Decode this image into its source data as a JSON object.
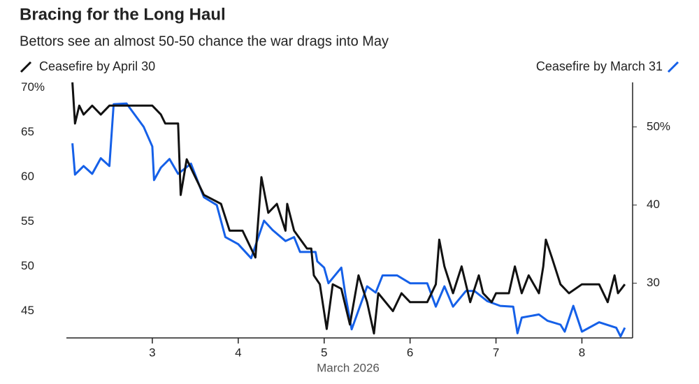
{
  "chart_data": {
    "type": "line",
    "title": "Bracing for the Long Haul",
    "subtitle": "Bettors see an almost 50-50 chance the war drags into May",
    "xlabel": "March 2026",
    "xlim": [
      2,
      8.59
    ],
    "xticks": [
      3,
      4,
      5,
      6,
      7,
      8
    ],
    "ylim": [
      42,
      70.6
    ],
    "yticks": [
      45,
      50,
      55,
      60,
      65,
      {
        "value": 70,
        "label": "70%"
      }
    ],
    "y2lim": [
      23,
      55.7
    ],
    "y2ticks": [
      30,
      40,
      {
        "value": 50,
        "label": "50%"
      }
    ],
    "series": [
      {
        "name": "Ceasefire by April 30",
        "color": "#111111",
        "axis": "y",
        "x": [
          2.07,
          2.1,
          2.15,
          2.2,
          2.3,
          2.4,
          2.5,
          2.6,
          2.8,
          3.0,
          3.1,
          3.15,
          3.3,
          3.33,
          3.4,
          3.5,
          3.6,
          3.8,
          3.9,
          4.05,
          4.2,
          4.27,
          4.35,
          4.45,
          4.55,
          4.57,
          4.65,
          4.8,
          4.85,
          4.88,
          4.95,
          5.03,
          5.1,
          5.2,
          5.3,
          5.4,
          5.5,
          5.58,
          5.63,
          5.8,
          5.9,
          6.0,
          6.2,
          6.3,
          6.34,
          6.4,
          6.5,
          6.6,
          6.7,
          6.8,
          6.85,
          6.95,
          7.0,
          7.15,
          7.22,
          7.3,
          7.38,
          7.5,
          7.55,
          7.58,
          7.65,
          7.75,
          7.85,
          8.0,
          8.2,
          8.3,
          8.38,
          8.42,
          8.5
        ],
        "values": [
          70.6,
          66,
          68,
          67,
          68,
          67,
          68,
          68,
          68,
          68,
          67,
          66,
          66,
          58,
          62,
          60,
          58,
          57,
          54,
          54,
          51,
          60,
          56,
          57,
          54,
          57,
          54,
          52,
          52,
          49,
          48,
          43,
          48,
          47.5,
          43.5,
          49,
          46,
          42.5,
          47,
          45,
          47,
          46,
          46,
          48,
          53,
          50,
          47,
          50,
          46,
          49,
          47,
          46,
          47,
          47,
          50,
          47,
          49,
          47,
          50,
          53,
          51,
          48,
          47,
          48,
          48,
          46,
          49,
          47,
          48
        ]
      },
      {
        "name": "Ceasefire by March 31",
        "color": "#1560e8",
        "axis": "y2",
        "x": [
          2.07,
          2.1,
          2.2,
          2.3,
          2.4,
          2.5,
          2.55,
          2.7,
          2.9,
          3.0,
          3.02,
          3.1,
          3.2,
          3.3,
          3.45,
          3.6,
          3.75,
          3.85,
          4.0,
          4.15,
          4.3,
          4.4,
          4.55,
          4.65,
          4.72,
          4.9,
          4.92,
          5.0,
          5.05,
          5.2,
          5.25,
          5.32,
          5.5,
          5.6,
          5.68,
          5.85,
          6.0,
          6.2,
          6.3,
          6.4,
          6.5,
          6.65,
          6.75,
          6.9,
          7.05,
          7.2,
          7.25,
          7.3,
          7.5,
          7.6,
          7.75,
          7.8,
          7.9,
          8.0,
          8.2,
          8.4,
          8.45,
          8.5
        ],
        "values": [
          47.9,
          43.9,
          45,
          44,
          46,
          45,
          52.9,
          53,
          50,
          47.5,
          43.2,
          44.8,
          45.9,
          44,
          45.3,
          41,
          40,
          35.9,
          35,
          33.2,
          38,
          36.8,
          35.4,
          35.9,
          34,
          34,
          32.8,
          32,
          30,
          32,
          28.3,
          24.1,
          29.6,
          28.8,
          31,
          31,
          30,
          30,
          27,
          29.6,
          27,
          29,
          29,
          27.7,
          27.1,
          27,
          23.6,
          25.6,
          26,
          25.2,
          24.7,
          23.8,
          27.1,
          23.8,
          25,
          24.3,
          23.2,
          24.3
        ]
      }
    ]
  }
}
